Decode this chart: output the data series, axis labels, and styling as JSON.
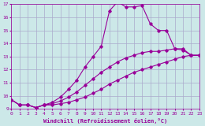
{
  "xlabel": "Windchill (Refroidissement éolien,°C)",
  "background_color": "#cce8e8",
  "grid_color": "#aaaacc",
  "line_color": "#990099",
  "xmin": 0,
  "xmax": 23,
  "ymin": 9,
  "ymax": 17,
  "line1_x": [
    0,
    1,
    2,
    3,
    4,
    5,
    6,
    7,
    8,
    9,
    10,
    11,
    12,
    13,
    14,
    15,
    16,
    17,
    18,
    19,
    20,
    21,
    22,
    23
  ],
  "line1_y": [
    9.7,
    9.3,
    9.3,
    9.1,
    9.3,
    9.3,
    9.4,
    9.5,
    9.7,
    9.9,
    10.2,
    10.5,
    10.9,
    11.2,
    11.5,
    11.8,
    12.0,
    12.2,
    12.4,
    12.6,
    12.8,
    13.0,
    13.1,
    13.1
  ],
  "line2_x": [
    0,
    1,
    2,
    3,
    4,
    5,
    6,
    7,
    8,
    9,
    10,
    11,
    12,
    13,
    14,
    15,
    16,
    17,
    18,
    19,
    20,
    21,
    22,
    23
  ],
  "line2_y": [
    9.7,
    9.3,
    9.3,
    9.1,
    9.3,
    9.4,
    9.6,
    9.9,
    10.3,
    10.8,
    11.3,
    11.8,
    12.2,
    12.6,
    12.9,
    13.1,
    13.3,
    13.4,
    13.4,
    13.5,
    13.6,
    13.6,
    13.1,
    13.1
  ],
  "line3_x": [
    0,
    1,
    2,
    3,
    4,
    5,
    6,
    7,
    8,
    9,
    10,
    11,
    12,
    13,
    14,
    15,
    16,
    17,
    18,
    19,
    20,
    21,
    22,
    23
  ],
  "line3_y": [
    9.7,
    9.3,
    9.3,
    9.1,
    9.3,
    9.5,
    9.9,
    10.5,
    11.2,
    12.2,
    13.0,
    13.8,
    16.5,
    17.2,
    16.8,
    16.8,
    16.9,
    15.5,
    15.0,
    15.0,
    13.6,
    13.5,
    13.1,
    13.1
  ]
}
